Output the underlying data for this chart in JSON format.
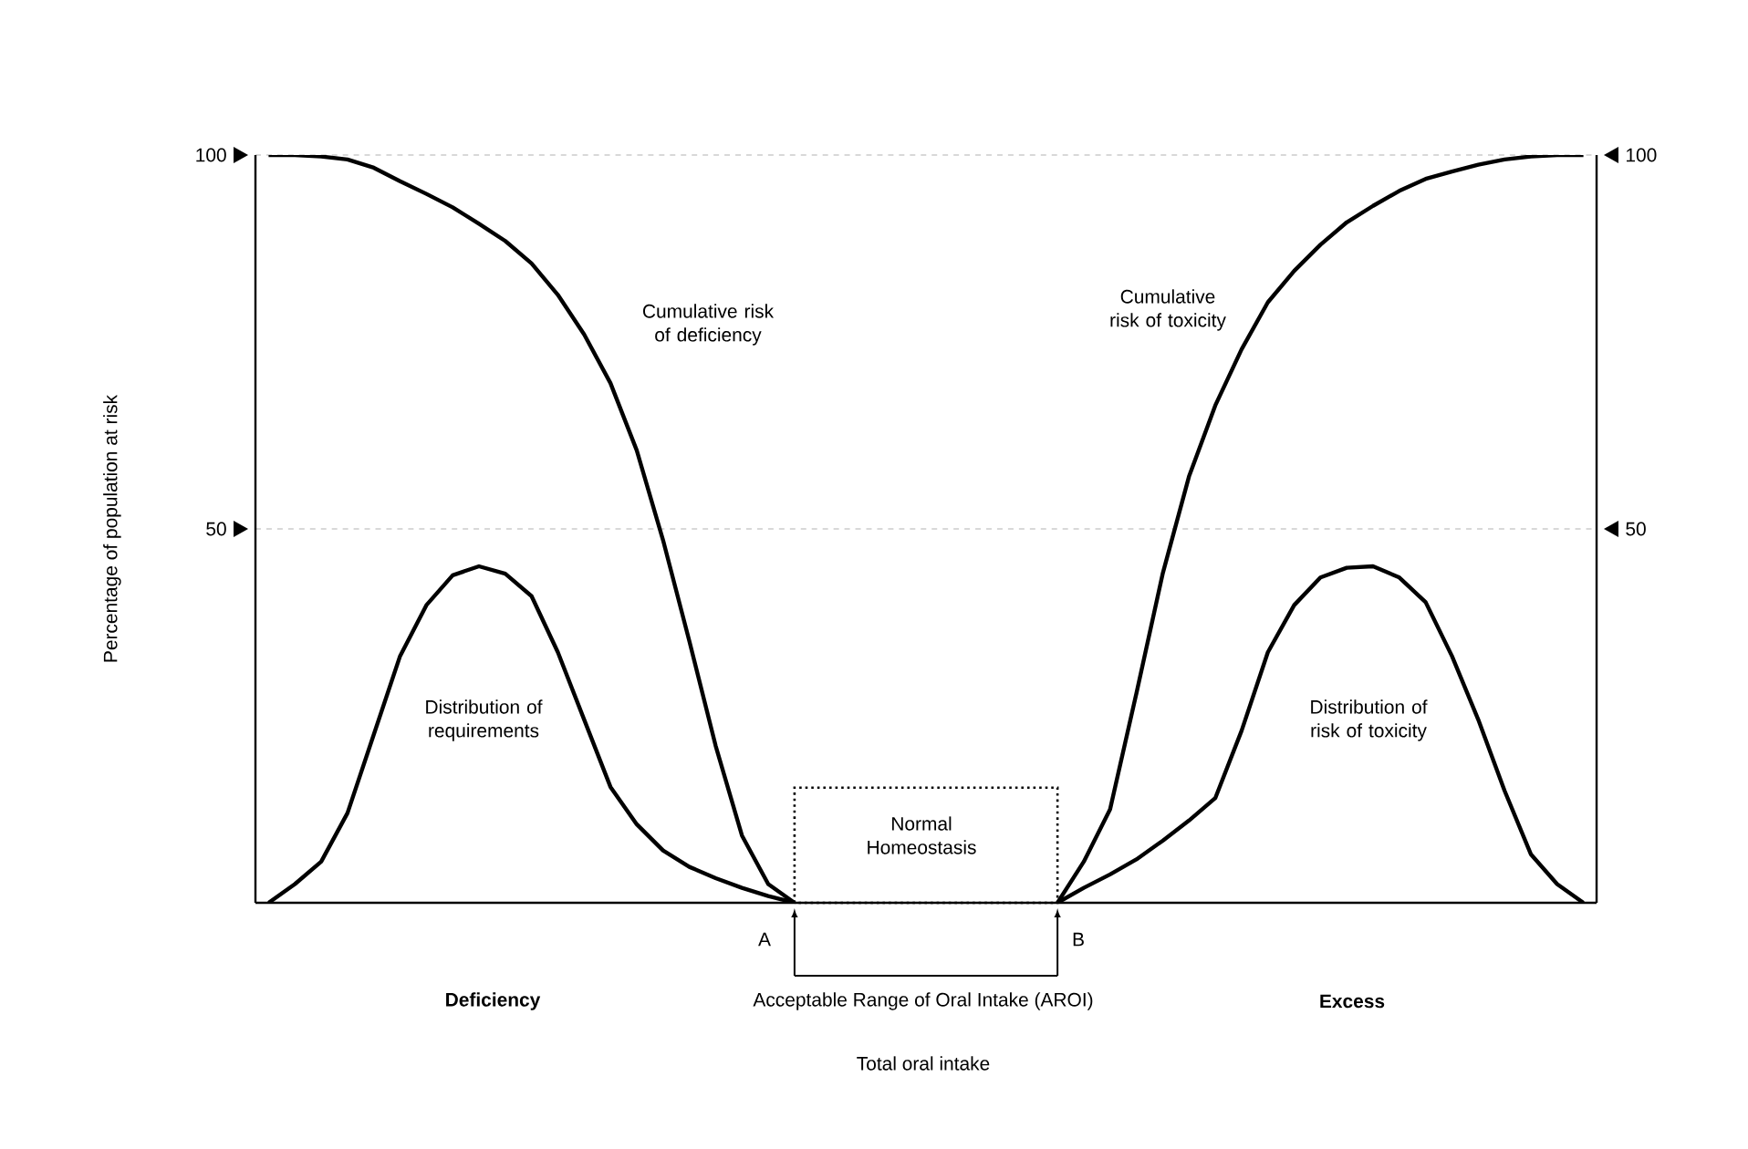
{
  "chart_data": {
    "type": "line",
    "ylabel": "Percentage of population at risk",
    "categories": [
      null,
      null,
      null,
      null,
      null,
      null,
      null,
      null,
      null,
      null,
      null,
      null,
      null,
      null,
      null,
      null,
      null,
      null,
      null,
      null,
      null,
      null,
      null,
      null,
      null,
      null,
      null,
      null,
      null,
      null,
      null,
      null,
      null,
      null,
      null,
      null,
      null,
      null,
      null,
      null,
      null,
      null,
      null,
      null,
      null,
      null,
      null,
      null,
      null,
      null,
      null
    ],
    "ylim": [
      0,
      100
    ],
    "yticks": [
      50,
      100
    ],
    "y2lim": [
      0,
      100
    ],
    "y2ticks": [
      50,
      100
    ],
    "grid": "y",
    "tick_labels": "y",
    "marker": "none",
    "line_style": "solid",
    "series": [
      {
        "name": "Cumulative risk of deficiency",
        "color": "#000000",
        "values": [
          100,
          100,
          99.8,
          99.4,
          98.3,
          96.5,
          94.8,
          93,
          90.8,
          88.5,
          85.5,
          81.3,
          76,
          69.5,
          60.5,
          48.5,
          35,
          21,
          9,
          2.5,
          0,
          null,
          null,
          null,
          null,
          null,
          null,
          null,
          null,
          null,
          null,
          null,
          null,
          null,
          null,
          null,
          null,
          null,
          null,
          null,
          null,
          null,
          null,
          null,
          null,
          null,
          null,
          null,
          null,
          null,
          null
        ]
      },
      {
        "name": "Distribution of requirements",
        "color": "#000000",
        "values": [
          0,
          2.5,
          5.5,
          12,
          22.5,
          33,
          39.8,
          43.8,
          45,
          44,
          41,
          33.5,
          24.5,
          15.5,
          10.5,
          7,
          4.8,
          3.3,
          2,
          0.9,
          0,
          null,
          null,
          null,
          null,
          null,
          null,
          null,
          null,
          null,
          null,
          null,
          null,
          null,
          null,
          null,
          null,
          null,
          null,
          null,
          null,
          null,
          null,
          null,
          null,
          null,
          null,
          null,
          null,
          null,
          null
        ]
      },
      {
        "name": "Cumulative risk of toxicity",
        "color": "#000000",
        "values": [
          null,
          null,
          null,
          null,
          null,
          null,
          null,
          null,
          null,
          null,
          null,
          null,
          null,
          null,
          null,
          null,
          null,
          null,
          null,
          null,
          null,
          null,
          null,
          null,
          null,
          null,
          null,
          null,
          null,
          null,
          0,
          5.5,
          12.5,
          28,
          44,
          57,
          66.5,
          74,
          80.3,
          84.5,
          88,
          91,
          93.2,
          95.2,
          96.8,
          97.8,
          98.7,
          99.4,
          99.8,
          100,
          100
        ]
      },
      {
        "name": "Distribution of risk of toxicity",
        "color": "#000000",
        "values": [
          null,
          null,
          null,
          null,
          null,
          null,
          null,
          null,
          null,
          null,
          null,
          null,
          null,
          null,
          null,
          null,
          null,
          null,
          null,
          null,
          null,
          null,
          null,
          null,
          null,
          null,
          null,
          null,
          null,
          null,
          0,
          2,
          3.8,
          5.8,
          8.3,
          11,
          14,
          23,
          33.5,
          39.8,
          43.5,
          44.8,
          45,
          43.5,
          40.2,
          33,
          24.5,
          15,
          6.5,
          2.5,
          0
        ]
      }
    ],
    "annotations": [
      "A",
      "B",
      "Deficiency",
      "Acceptable Range of Oral Intake (AROI)",
      "Excess",
      "Normal Homeostasis",
      "Total oral intake"
    ]
  }
}
